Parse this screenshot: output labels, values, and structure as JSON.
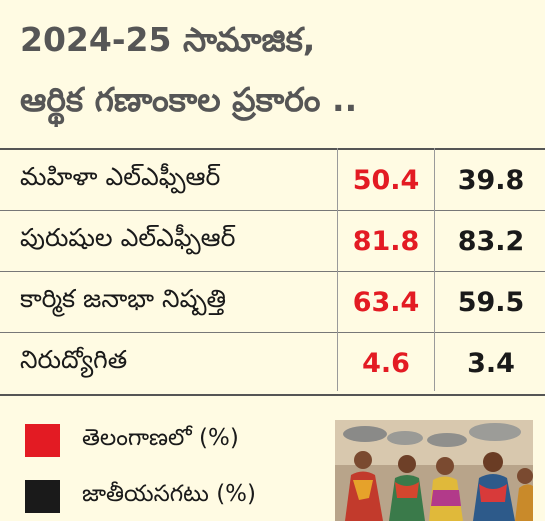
{
  "title_line1": "2024-25 సామాజిక,",
  "title_line2": "ఆర్థిక గణాంకాల ప్రకారం ..",
  "chart_data": {
    "type": "table",
    "series": [
      {
        "name": "తెలంగాణలో (%)",
        "color": "#e31b23"
      },
      {
        "name": "జాతీయసగటు (%)",
        "color": "#1a1a1a"
      }
    ],
    "rows": [
      {
        "label": "మహిళా ఎల్ఎఫ్పీఆర్",
        "telangana": "50.4",
        "national": "39.8"
      },
      {
        "label": "పురుషుల ఎల్ఎఫ్పీఆర్",
        "telangana": "81.8",
        "national": "83.2"
      },
      {
        "label": "కార్మిక జనాభా నిష్పత్తి",
        "telangana": "63.4",
        "national": "59.5"
      },
      {
        "label": "నిరుద్యోగిత",
        "telangana": "4.6",
        "national": "3.4"
      }
    ]
  },
  "colors": {
    "telangana": "#e31b23",
    "national": "#1a1a1a",
    "background": "#fffbe3"
  }
}
